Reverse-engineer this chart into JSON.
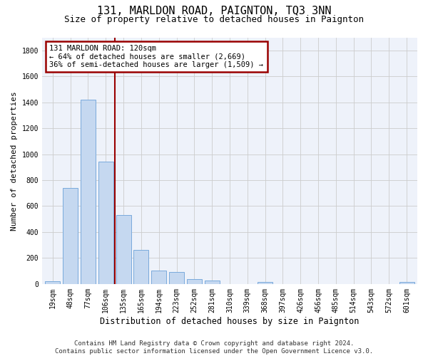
{
  "title": "131, MARLDON ROAD, PAIGNTON, TQ3 3NN",
  "subtitle": "Size of property relative to detached houses in Paignton",
  "xlabel": "Distribution of detached houses by size in Paignton",
  "ylabel": "Number of detached properties",
  "bar_labels": [
    "19sqm",
    "48sqm",
    "77sqm",
    "106sqm",
    "135sqm",
    "165sqm",
    "194sqm",
    "223sqm",
    "252sqm",
    "281sqm",
    "310sqm",
    "339sqm",
    "368sqm",
    "397sqm",
    "426sqm",
    "456sqm",
    "485sqm",
    "514sqm",
    "543sqm",
    "572sqm",
    "601sqm"
  ],
  "bar_values": [
    22,
    740,
    1420,
    940,
    530,
    265,
    105,
    93,
    40,
    27,
    0,
    0,
    18,
    0,
    0,
    0,
    0,
    0,
    0,
    0,
    15
  ],
  "bar_color": "#c5d8f0",
  "bar_edgecolor": "#7aaadc",
  "vline_x": 3.5,
  "vline_color": "#990000",
  "annotation_text": "131 MARLDON ROAD: 120sqm\n← 64% of detached houses are smaller (2,669)\n36% of semi-detached houses are larger (1,509) →",
  "annotation_box_color": "#990000",
  "ylim": [
    0,
    1900
  ],
  "yticks": [
    0,
    200,
    400,
    600,
    800,
    1000,
    1200,
    1400,
    1600,
    1800
  ],
  "grid_color": "#cccccc",
  "bg_color": "#eef2fa",
  "footer": "Contains HM Land Registry data © Crown copyright and database right 2024.\nContains public sector information licensed under the Open Government Licence v3.0.",
  "title_fontsize": 11,
  "subtitle_fontsize": 9,
  "xlabel_fontsize": 8.5,
  "ylabel_fontsize": 8,
  "tick_fontsize": 7,
  "footer_fontsize": 6.5,
  "ann_fontsize": 7.5
}
